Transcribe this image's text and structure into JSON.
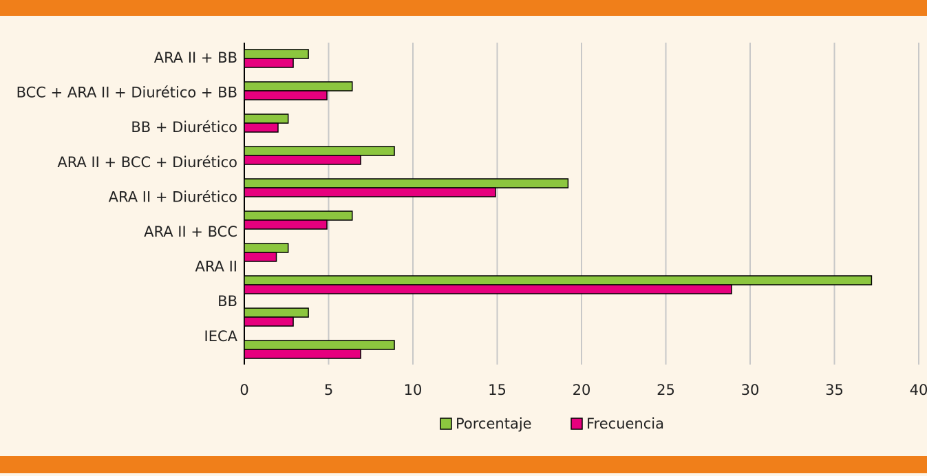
{
  "chart_data": {
    "type": "bar",
    "orientation": "horizontal",
    "categories": [
      "ARA II + BB",
      "BCC + ARA II + Diurético + BB",
      "BB + Diurético",
      "ARA II + BCC + Diurético",
      "ARA II + Diurético",
      "ARA II + BCC",
      "ARA II",
      "BB",
      "IECA",
      null
    ],
    "series": [
      {
        "name": "Porcentaje",
        "color": "#8cc63f",
        "values": [
          3.8,
          6.4,
          2.6,
          8.9,
          19.2,
          6.4,
          2.6,
          37.2,
          3.8,
          8.9
        ]
      },
      {
        "name": "Frecuencia",
        "color": "#e6007e",
        "values": [
          2.9,
          4.9,
          2.0,
          6.9,
          14.9,
          4.9,
          1.9,
          28.9,
          2.9,
          6.9
        ]
      }
    ],
    "xlim": [
      0,
      40
    ],
    "xticks": [
      0,
      5,
      10,
      15,
      20,
      25,
      30,
      35,
      40
    ],
    "grid": true,
    "legend": "bottom"
  }
}
